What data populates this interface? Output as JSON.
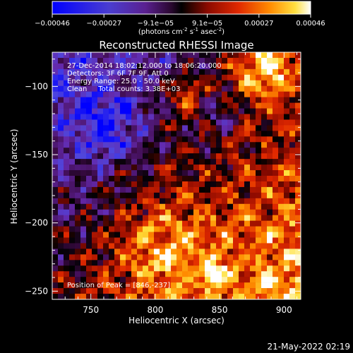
{
  "chart_data": {
    "type": "heatmap",
    "title": "Reconstructed RHESSI Image",
    "xlabel": "Heliocentric X (arcsec)",
    "ylabel": "Heliocentric Y (arcsec)",
    "xlim": [
      720,
      913
    ],
    "ylim": [
      -256,
      -75
    ],
    "xticks": [
      750,
      800,
      850,
      900
    ],
    "yticks": [
      -100,
      -150,
      -200,
      -250
    ],
    "colorbar": {
      "range": [
        -0.00046,
        0.00046
      ],
      "tick_labels": [
        "-0.00046",
        "-0.00027",
        "-9.1e-05",
        "9.1e-05",
        "0.00027",
        "0.00046"
      ],
      "label": "(photons cm",
      "label_sup1": "-2",
      "label_mid": " s",
      "label_sup2": "-1",
      "label_mid2": " asec",
      "label_sup3": "-2",
      "label_end": ")"
    },
    "annotations": [
      "27-Dec-2014 18:02:12.000 to 18:06:20.000",
      "Detectors: 3F 6F 7F 9F, Att 0",
      "Energy Range: 25.0 - 50.0 keV",
      "Clean     Total counts: 3.38E+03"
    ],
    "peak_label": "Position of Peak = [846,-237]",
    "peak": [
      846,
      -237
    ],
    "grid": false
  },
  "footer": {
    "timestamp": "21-May-2022 02:19"
  }
}
